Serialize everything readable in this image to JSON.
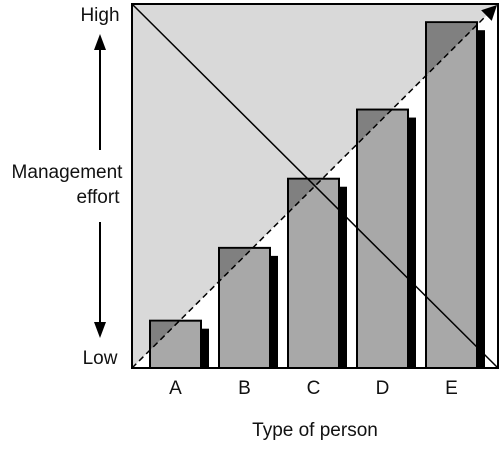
{
  "chart_data": {
    "type": "bar",
    "categories": [
      "A",
      "B",
      "C",
      "D",
      "E"
    ],
    "values": [
      13,
      33,
      52,
      71,
      95
    ],
    "ylim": [
      0,
      100
    ],
    "xlabel": "Type of person",
    "ylabel_lines": [
      "Management",
      "effort"
    ],
    "y_high_label": "High",
    "y_low_label": "Low",
    "grid": false,
    "legend": "none",
    "overlays": [
      {
        "kind": "solid-line",
        "from": [
          0,
          100
        ],
        "to": [
          100,
          0
        ],
        "shaded_region": "upper-left triangle"
      },
      {
        "kind": "dashed-arrow",
        "from": [
          0,
          0
        ],
        "to": [
          100,
          100
        ]
      }
    ]
  },
  "colors": {
    "bar_fill": "#a8a8a8",
    "bar_shadow": "#000000",
    "triangle_fill": "#d9d9d9",
    "overlap_fill": "#808080",
    "axis": "#000000"
  }
}
